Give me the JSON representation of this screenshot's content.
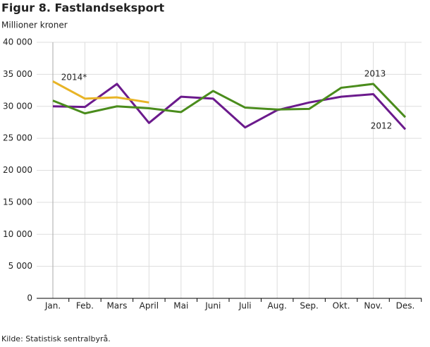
{
  "chart_data": {
    "type": "line",
    "title": "Figur 8. Fastlandseksport",
    "subtitle": "Millioner kroner",
    "source": "Kilde: Statistisk sentralbyrå.",
    "categories": [
      "Jan.",
      "Feb.",
      "Mars",
      "April",
      "Mai",
      "Juni",
      "Juli",
      "Aug.",
      "Sep.",
      "Okt.",
      "Nov.",
      "Des."
    ],
    "series": [
      {
        "name": "2012",
        "color": "#6b1a8c",
        "values": [
          30000,
          29900,
          33500,
          27400,
          31500,
          31200,
          26700,
          29400,
          30600,
          31500,
          31900,
          26400
        ]
      },
      {
        "name": "2013",
        "color": "#4a8c1c",
        "values": [
          30900,
          28900,
          30000,
          29700,
          29100,
          32400,
          29800,
          29500,
          29600,
          32900,
          33500,
          28300
        ]
      },
      {
        "name": "2014*",
        "color": "#e8b426",
        "values": [
          33900,
          31200,
          31400,
          30600,
          null,
          null,
          null,
          null,
          null,
          null,
          null,
          null
        ]
      }
    ],
    "ylim": [
      0,
      40000
    ],
    "yticks": [
      0,
      {
        "value": 5000,
        "label": "5 000"
      },
      {
        "value": 10000,
        "label": "10 000"
      },
      {
        "value": 15000,
        "label": "15 000"
      },
      {
        "value": 20000,
        "label": "20 000"
      },
      {
        "value": 25000,
        "label": "25 000"
      },
      {
        "value": 30000,
        "label": "30 000"
      },
      {
        "value": 35000,
        "label": "35 000"
      },
      {
        "value": 40000,
        "label": "40 000"
      }
    ],
    "grid": true
  }
}
